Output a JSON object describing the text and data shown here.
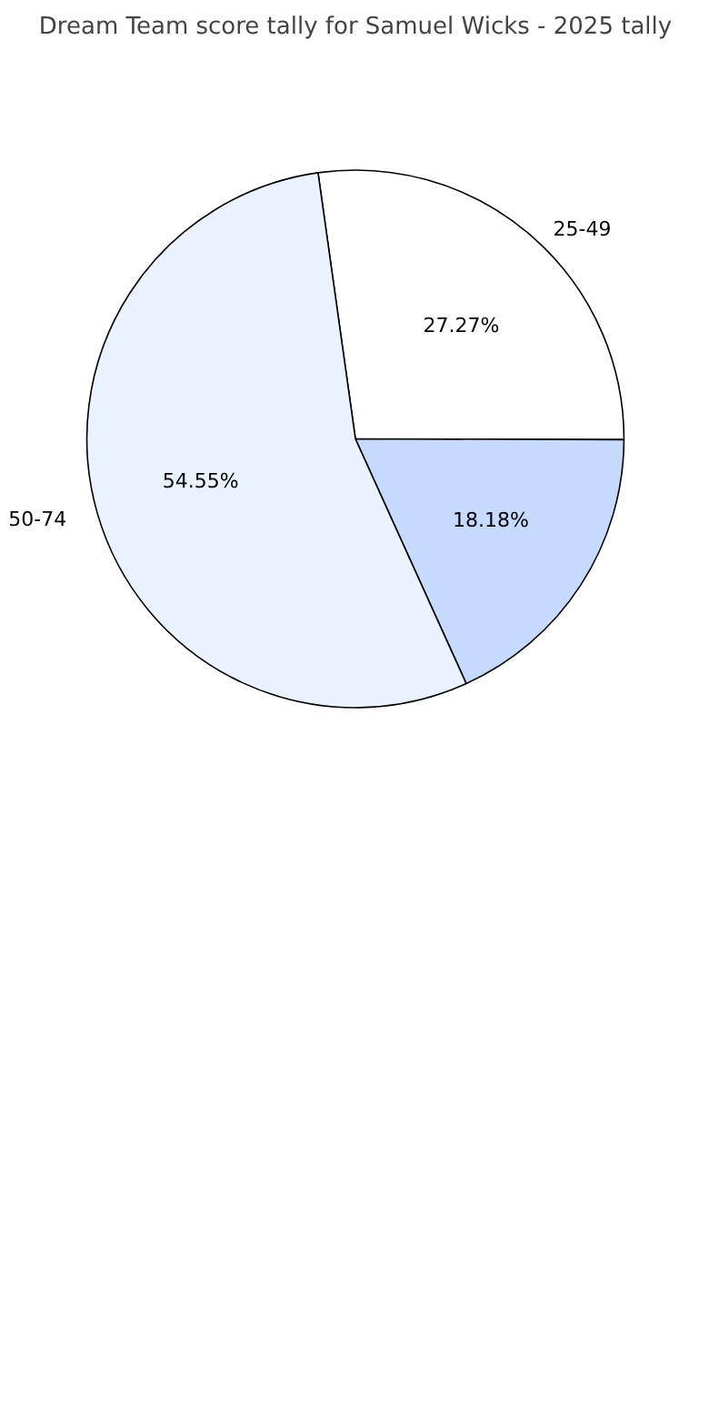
{
  "chart_data": {
    "type": "pie",
    "title": "Dream Team score tally for Samuel Wicks - 2025 tally",
    "categories": [
      "25-49",
      null,
      "50-74"
    ],
    "values": [
      27.27,
      18.18,
      54.55
    ],
    "colors": [
      "#ffffff",
      "#c6d9ff",
      "#eaf1ff"
    ],
    "value_labels": [
      "27.27%",
      "18.18%",
      "54.55%"
    ]
  }
}
